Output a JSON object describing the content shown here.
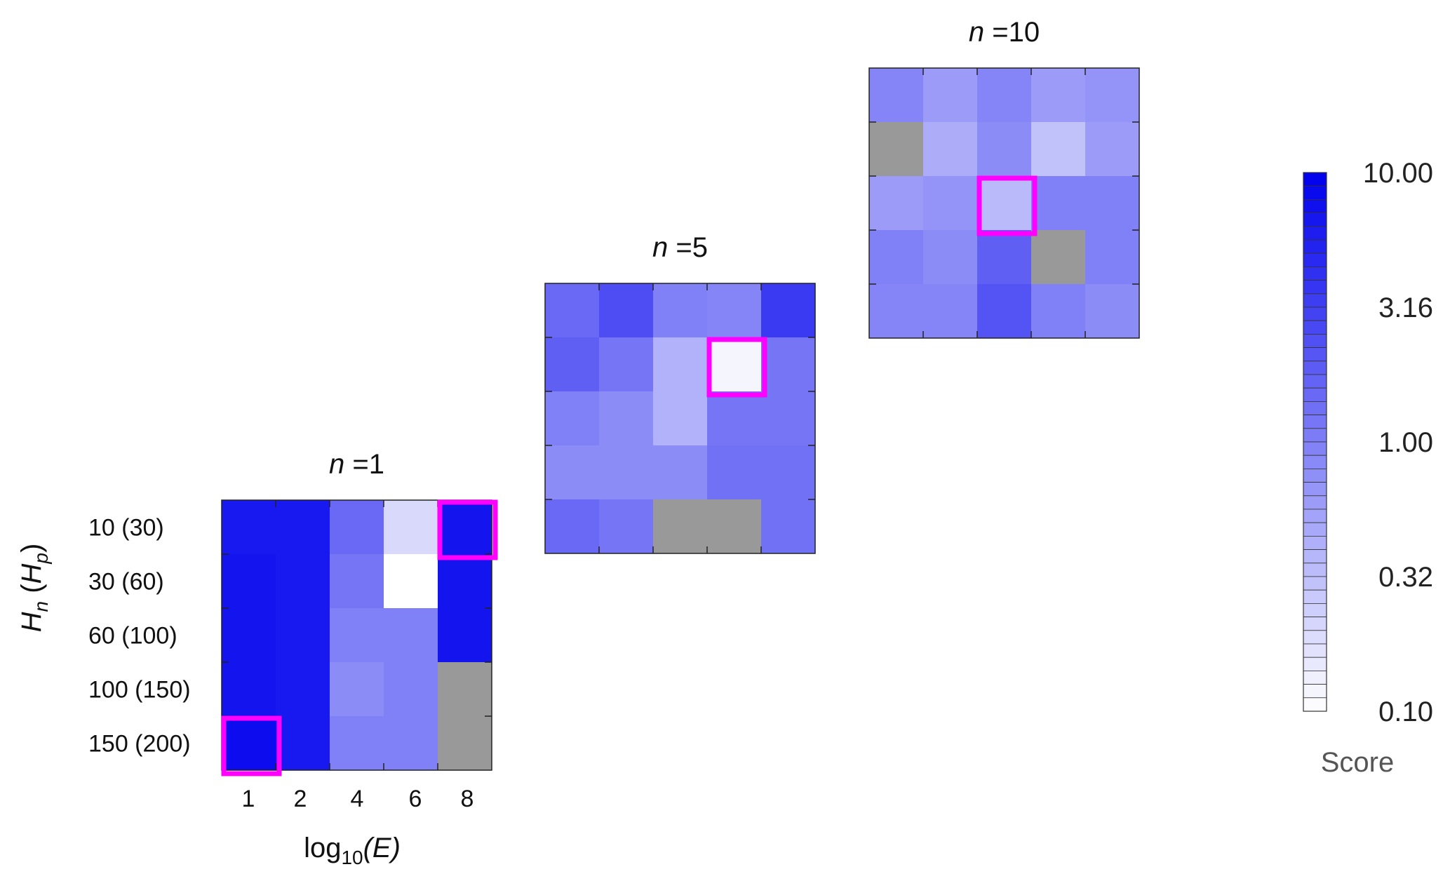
{
  "chart_data": {
    "type": "heatmap",
    "xlabel_main": "log",
    "xlabel_sub": "10",
    "xlabel_var": "(E)",
    "ylabel_main": "H",
    "ylabel_sub1": "n",
    "ylabel_paren_var": "H",
    "ylabel_sub2": "p",
    "x_tick_labels": [
      "1",
      "2",
      "4",
      "6",
      "8"
    ],
    "y_tick_labels": [
      "10 (30)",
      "30 (60)",
      "60 (100)",
      "100 (150)",
      "150 (200)"
    ],
    "missing_color": "#999999",
    "highlight_color": "#ff00ff",
    "panels": [
      {
        "n_var": "n",
        "n_label": " =1",
        "scores": [
          [
            6.5,
            6.5,
            1.5,
            0.2,
            7.0
          ],
          [
            7.0,
            6.5,
            1.2,
            0.1,
            7.0
          ],
          [
            7.0,
            6.5,
            1.0,
            1.0,
            7.0
          ],
          [
            7.0,
            6.5,
            0.8,
            1.0,
            null
          ],
          [
            8.0,
            6.5,
            1.0,
            1.0,
            null
          ]
        ],
        "highlights": [
          [
            0,
            4
          ],
          [
            4,
            0
          ]
        ]
      },
      {
        "n_var": "n",
        "n_label": " =5",
        "scores": [
          [
            1.5,
            2.5,
            1.0,
            0.9,
            3.5
          ],
          [
            1.8,
            1.2,
            0.4,
            0.12,
            1.2
          ],
          [
            1.0,
            0.8,
            0.4,
            1.2,
            1.2
          ],
          [
            0.8,
            0.8,
            0.8,
            1.3,
            1.3
          ],
          [
            1.5,
            1.2,
            null,
            null,
            1.3
          ]
        ],
        "highlights": [
          [
            1,
            3
          ]
        ]
      },
      {
        "n_var": "n",
        "n_label": " =10",
        "scores": [
          [
            0.9,
            0.6,
            0.9,
            0.6,
            0.7
          ],
          [
            null,
            0.45,
            0.8,
            0.3,
            0.6
          ],
          [
            0.6,
            0.7,
            0.35,
            1.0,
            1.0
          ],
          [
            1.0,
            0.8,
            1.8,
            null,
            1.0
          ],
          [
            0.9,
            0.9,
            2.2,
            1.0,
            0.8
          ]
        ],
        "highlights": [
          [
            2,
            2
          ]
        ]
      }
    ],
    "colorbar": {
      "label": "Score",
      "tick_labels": [
        "10.00",
        "3.16",
        "1.00",
        "0.32",
        "0.10"
      ],
      "min": 0.1,
      "max": 10.0,
      "scale": "log",
      "color_low": "#ffffff",
      "color_high": "#0000ee",
      "steps": 40
    }
  }
}
